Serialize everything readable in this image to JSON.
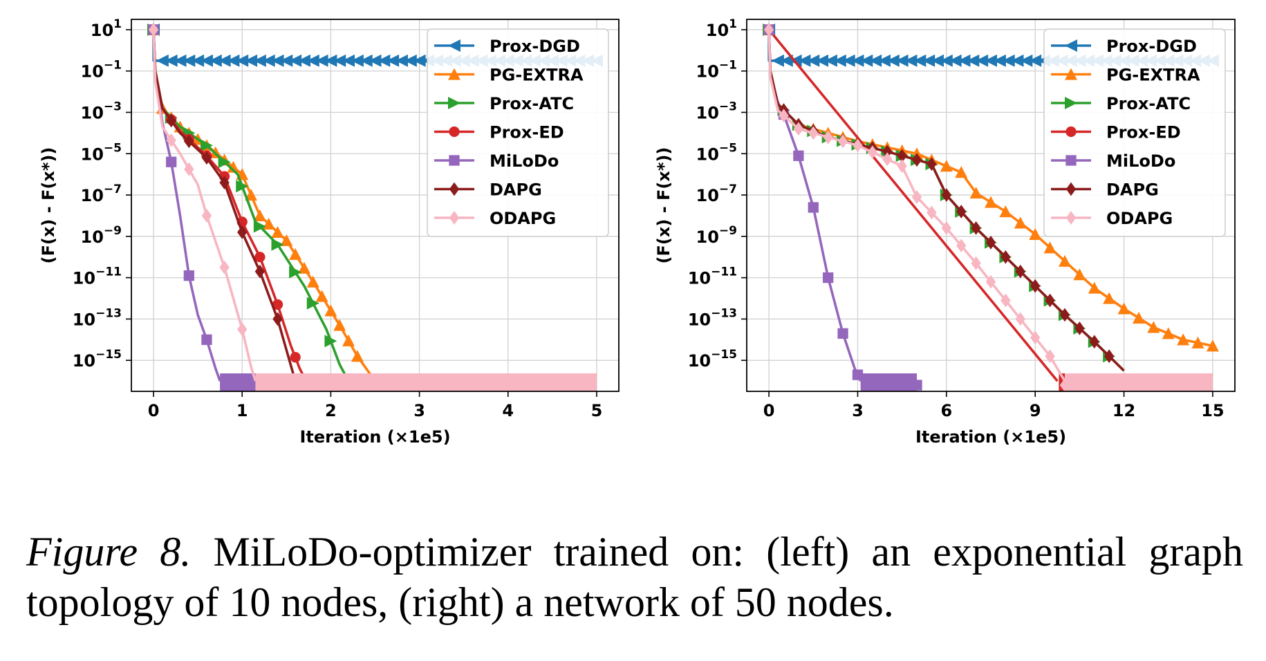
{
  "figure": {
    "caption_label": "Figure 8.",
    "caption_text": "MiLoDo-optimizer trained on: (left) an exponential graph topology of 10 nodes, (right) a network of 50 nodes."
  },
  "colors": {
    "Prox-DGD": "#1f77b4",
    "PG-EXTRA": "#ff7f0e",
    "Prox-ATC": "#2ca02c",
    "Prox-ED": "#d62728",
    "MiLoDo": "#9467bd",
    "DAPG": "#8c1c1c",
    "ODAPG": "#f7b6c2"
  },
  "chart_data": [
    {
      "type": "line",
      "xlabel": "Iteration (×1e5)",
      "ylabel": "(F(x) - F(x*))",
      "xscale": "linear",
      "yscale": "log",
      "xlim": [
        -0.25,
        5.25
      ],
      "ylim_log10": [
        -16.5,
        1.5
      ],
      "xticks": [
        0,
        1,
        2,
        3,
        4,
        5
      ],
      "yticks_exp": [
        1,
        -1,
        -3,
        -5,
        -7,
        -9,
        -11,
        -13,
        -15
      ],
      "grid": true,
      "legend": "top-right",
      "series": [
        {
          "name": "Prox-DGD",
          "marker": "triangle-left",
          "floor_from": null,
          "log10_y": [
            [
              0,
              1.0
            ],
            [
              0.001,
              -0.5
            ],
            [
              5,
              -0.5
            ]
          ],
          "marker_x": [
            0.1,
            0.2,
            0.3,
            0.4,
            0.5,
            0.6,
            0.7,
            0.8,
            0.9,
            1.0,
            1.1,
            1.2,
            1.3,
            1.4,
            1.5,
            1.6,
            1.7,
            1.8,
            1.9,
            2.0,
            2.1,
            2.2,
            2.3,
            2.4,
            2.5,
            2.6,
            2.7,
            2.8,
            2.9,
            3.0,
            3.1,
            3.2,
            3.3,
            3.4,
            3.5,
            3.6,
            3.7,
            3.8,
            3.9,
            4.0,
            4.1,
            4.2,
            4.3,
            4.4,
            4.5,
            4.6,
            4.7,
            4.8,
            4.9,
            5.0
          ]
        },
        {
          "name": "PG-EXTRA",
          "marker": "triangle-up",
          "floor_from": 2.35,
          "log10_y": [
            [
              0,
              1.0
            ],
            [
              0.02,
              -1.0
            ],
            [
              0.1,
              -2.8
            ],
            [
              0.3,
              -3.7
            ],
            [
              0.6,
              -4.6
            ],
            [
              1.0,
              -6.0
            ],
            [
              1.2,
              -8.0
            ],
            [
              1.5,
              -9.2
            ],
            [
              1.8,
              -11.2
            ],
            [
              2.1,
              -13.3
            ],
            [
              2.3,
              -14.8
            ],
            [
              2.5,
              -16.0
            ]
          ],
          "marker_x": [
            0.1,
            0.2,
            0.3,
            0.4,
            0.5,
            0.6,
            0.7,
            0.8,
            0.9,
            1.0,
            1.1,
            1.2,
            1.3,
            1.4,
            1.5,
            1.6,
            1.7,
            1.8,
            1.9,
            2.0,
            2.1,
            2.2,
            2.3,
            2.4,
            2.5
          ]
        },
        {
          "name": "Prox-ATC",
          "marker": "triangle-right",
          "floor_from": 2.2,
          "log10_y": [
            [
              0,
              1.0
            ],
            [
              0.02,
              -1.0
            ],
            [
              0.1,
              -2.8
            ],
            [
              0.3,
              -3.7
            ],
            [
              0.6,
              -4.6
            ],
            [
              0.95,
              -6.0
            ],
            [
              1.15,
              -8.3
            ],
            [
              1.4,
              -9.4
            ],
            [
              1.7,
              -11.4
            ],
            [
              1.95,
              -13.5
            ],
            [
              2.1,
              -15.2
            ],
            [
              2.2,
              -16.0
            ]
          ],
          "marker_x": [
            0.2,
            0.4,
            0.6,
            0.8,
            1.0,
            1.2,
            1.4,
            1.6,
            1.8,
            2.0,
            2.2
          ]
        },
        {
          "name": "Prox-ED",
          "marker": "circle",
          "floor_from": 1.7,
          "log10_y": [
            [
              0,
              1.0
            ],
            [
              0.02,
              -1.0
            ],
            [
              0.1,
              -2.8
            ],
            [
              0.3,
              -3.9
            ],
            [
              0.6,
              -5.1
            ],
            [
              0.8,
              -6.1
            ],
            [
              1.0,
              -8.3
            ],
            [
              1.2,
              -10.0
            ],
            [
              1.4,
              -12.3
            ],
            [
              1.55,
              -14.3
            ],
            [
              1.65,
              -15.4
            ],
            [
              1.72,
              -16.0
            ]
          ],
          "marker_x": [
            0.2,
            0.4,
            0.6,
            0.8,
            1.0,
            1.2,
            1.4,
            1.6,
            4.6
          ]
        },
        {
          "name": "MiLoDo",
          "marker": "square",
          "floor_from": 0.75,
          "log10_y": [
            [
              0,
              1.0
            ],
            [
              0.02,
              -1.2
            ],
            [
              0.1,
              -3.5
            ],
            [
              0.2,
              -5.4
            ],
            [
              0.3,
              -8.0
            ],
            [
              0.4,
              -10.9
            ],
            [
              0.5,
              -12.8
            ],
            [
              0.6,
              -14.0
            ],
            [
              0.7,
              -15.4
            ],
            [
              0.75,
              -16.0
            ]
          ],
          "marker_x": [
            0.2,
            0.4,
            0.6,
            4.9
          ]
        },
        {
          "name": "DAPG",
          "marker": "diamond",
          "floor_from": 1.6,
          "log10_y": [
            [
              0,
              1.0
            ],
            [
              0.02,
              -1.0
            ],
            [
              0.1,
              -2.8
            ],
            [
              0.3,
              -4.0
            ],
            [
              0.6,
              -5.2
            ],
            [
              0.8,
              -6.4
            ],
            [
              1.0,
              -8.8
            ],
            [
              1.2,
              -10.7
            ],
            [
              1.4,
              -13.0
            ],
            [
              1.5,
              -14.5
            ],
            [
              1.6,
              -16.0
            ]
          ],
          "marker_x": [
            0.2,
            0.4,
            0.6,
            0.8,
            1.0,
            1.2,
            1.4
          ]
        },
        {
          "name": "ODAPG",
          "marker": "diamond",
          "floor_from": 1.15,
          "log10_y": [
            [
              0,
              1.0
            ],
            [
              0.02,
              -1.5
            ],
            [
              0.1,
              -3.7
            ],
            [
              0.3,
              -5.0
            ],
            [
              0.5,
              -6.5
            ],
            [
              0.6,
              -8.0
            ],
            [
              0.8,
              -10.5
            ],
            [
              1.0,
              -13.5
            ],
            [
              1.1,
              -15.3
            ],
            [
              1.15,
              -16.0
            ]
          ],
          "marker_x": [
            0.2,
            0.4,
            0.6,
            0.8,
            1.0
          ]
        }
      ]
    },
    {
      "type": "line",
      "xlabel": "Iteration (×1e5)",
      "ylabel": "(F(x) - F(x*))",
      "xscale": "linear",
      "yscale": "log",
      "xlim": [
        -0.75,
        15.75
      ],
      "ylim_log10": [
        -16.5,
        1.5
      ],
      "xticks": [
        0,
        3,
        6,
        9,
        12,
        15
      ],
      "yticks_exp": [
        1,
        -1,
        -3,
        -5,
        -7,
        -9,
        -11,
        -13,
        -15
      ],
      "grid": true,
      "legend": "top-right",
      "series": [
        {
          "name": "Prox-DGD",
          "marker": "triangle-left",
          "floor_from": null,
          "log10_y": [
            [
              0,
              1.0
            ],
            [
              0.003,
              -0.5
            ],
            [
              15,
              -0.5
            ]
          ],
          "marker_x": [
            0.3,
            0.6,
            0.9,
            1.2,
            1.5,
            1.8,
            2.1,
            2.4,
            2.7,
            3.0,
            3.3,
            3.6,
            3.9,
            4.2,
            4.5,
            4.8,
            5.1,
            5.4,
            5.7,
            6.0,
            6.3,
            6.6,
            6.9,
            7.2,
            7.5,
            7.8,
            8.1,
            8.4,
            8.7,
            9.0,
            9.3,
            9.6,
            9.9,
            10.2,
            10.5,
            10.8,
            11.1,
            11.4,
            11.7,
            12.0,
            12.3,
            12.6,
            12.9,
            13.2,
            13.5,
            13.8,
            14.1,
            14.4,
            14.7,
            15.0
          ]
        },
        {
          "name": "PG-EXTRA",
          "marker": "triangle-up",
          "floor_from": null,
          "log10_y": [
            [
              0,
              1.0
            ],
            [
              0.05,
              -1.0
            ],
            [
              0.3,
              -2.6
            ],
            [
              1.0,
              -3.6
            ],
            [
              3.0,
              -4.4
            ],
            [
              5.0,
              -5.0
            ],
            [
              6.5,
              -5.9
            ],
            [
              7.0,
              -6.9
            ],
            [
              8.0,
              -7.8
            ],
            [
              9.0,
              -8.9
            ],
            [
              10.0,
              -10.2
            ],
            [
              11.0,
              -11.5
            ],
            [
              12.0,
              -12.5
            ],
            [
              13.0,
              -13.4
            ],
            [
              14.0,
              -14.0
            ],
            [
              15.0,
              -14.3
            ]
          ],
          "marker_x": [
            0.5,
            1.0,
            1.5,
            2.0,
            2.5,
            3.0,
            3.5,
            4.0,
            4.5,
            5.0,
            5.5,
            6.0,
            6.5,
            7.0,
            7.5,
            8.0,
            8.5,
            9.0,
            9.5,
            10.0,
            10.5,
            11.0,
            11.5,
            12.0,
            12.5,
            13.0,
            13.5,
            14.0,
            14.5,
            15.0
          ]
        },
        {
          "name": "Prox-ATC",
          "marker": "triangle-right",
          "floor_from": 12.0,
          "log10_y": [
            [
              0,
              1.0
            ],
            [
              0.05,
              -1.0
            ],
            [
              0.3,
              -2.6
            ],
            [
              1.0,
              -3.6
            ],
            [
              2.0,
              -4.2
            ],
            [
              4.0,
              -4.9
            ],
            [
              5.5,
              -5.5
            ],
            [
              6.0,
              -7.0
            ],
            [
              7.0,
              -8.6
            ],
            [
              8.0,
              -10.0
            ],
            [
              9.0,
              -11.4
            ],
            [
              10.0,
              -12.8
            ],
            [
              11.0,
              -14.1
            ],
            [
              11.5,
              -14.8
            ],
            [
              12.0,
              -15.5
            ]
          ],
          "marker_x": [
            0.5,
            1.0,
            1.5,
            2.0,
            2.5,
            3.0,
            3.5,
            4.0,
            4.5,
            5.0,
            5.5,
            6.0,
            6.5,
            7.0,
            7.5,
            8.0,
            8.5,
            9.0,
            9.5,
            10.0,
            10.5,
            11.0,
            11.5,
            12.0
          ]
        },
        {
          "name": "Prox-ED",
          "marker": "circle",
          "floor_from": 9.8,
          "log10_y": [
            [
              0,
              1.0
            ],
            [
              9.75,
              -16.0
            ]
          ],
          "marker_x": []
        },
        {
          "name": "MiLoDo",
          "marker": "square",
          "floor_from": 3.1,
          "log10_y": [
            [
              0,
              1.0
            ],
            [
              0.05,
              -1.2
            ],
            [
              0.3,
              -2.5
            ],
            [
              0.5,
              -3.1
            ],
            [
              1.0,
              -5.1
            ],
            [
              1.5,
              -7.6
            ],
            [
              2.0,
              -11.0
            ],
            [
              2.5,
              -13.7
            ],
            [
              2.9,
              -15.4
            ],
            [
              3.1,
              -16.0
            ]
          ],
          "marker_x": [
            0.5,
            1.0,
            1.5,
            2.0,
            2.5,
            3.0,
            5.0
          ]
        },
        {
          "name": "DAPG",
          "marker": "diamond",
          "floor_from": 12.0,
          "log10_y": [
            [
              0,
              1.0
            ],
            [
              0.05,
              -1.0
            ],
            [
              0.3,
              -2.6
            ],
            [
              1.0,
              -3.6
            ],
            [
              2.0,
              -4.2
            ],
            [
              4.0,
              -4.9
            ],
            [
              5.5,
              -5.5
            ],
            [
              6.0,
              -7.0
            ],
            [
              7.0,
              -8.6
            ],
            [
              8.0,
              -10.0
            ],
            [
              9.0,
              -11.4
            ],
            [
              10.0,
              -12.8
            ],
            [
              11.0,
              -14.1
            ],
            [
              11.5,
              -14.8
            ],
            [
              12.0,
              -15.5
            ]
          ],
          "marker_x": [
            0.5,
            1.0,
            1.5,
            2.0,
            2.5,
            3.0,
            3.5,
            4.0,
            4.5,
            5.0,
            5.5,
            6.0,
            6.5,
            7.0,
            7.5,
            8.0,
            8.5,
            9.0,
            9.5,
            10.0,
            10.5,
            11.0,
            11.5,
            12.0
          ]
        },
        {
          "name": "ODAPG",
          "marker": "diamond",
          "floor_from": 10.0,
          "log10_y": [
            [
              0,
              1.0
            ],
            [
              0.05,
              -1.3
            ],
            [
              0.3,
              -2.9
            ],
            [
              1.0,
              -3.8
            ],
            [
              3.0,
              -4.6
            ],
            [
              4.5,
              -5.6
            ],
            [
              5.0,
              -7.1
            ],
            [
              6.0,
              -8.6
            ],
            [
              7.0,
              -10.3
            ],
            [
              8.0,
              -12.1
            ],
            [
              9.0,
              -13.9
            ],
            [
              9.5,
              -14.8
            ],
            [
              10.0,
              -16.0
            ]
          ],
          "marker_x": [
            0.5,
            1.0,
            1.5,
            2.0,
            2.5,
            3.0,
            3.5,
            4.0,
            4.5,
            5.0,
            5.5,
            6.0,
            6.5,
            7.0,
            7.5,
            8.0,
            8.5,
            9.0,
            9.5,
            10.0,
            12.0
          ]
        }
      ]
    }
  ]
}
